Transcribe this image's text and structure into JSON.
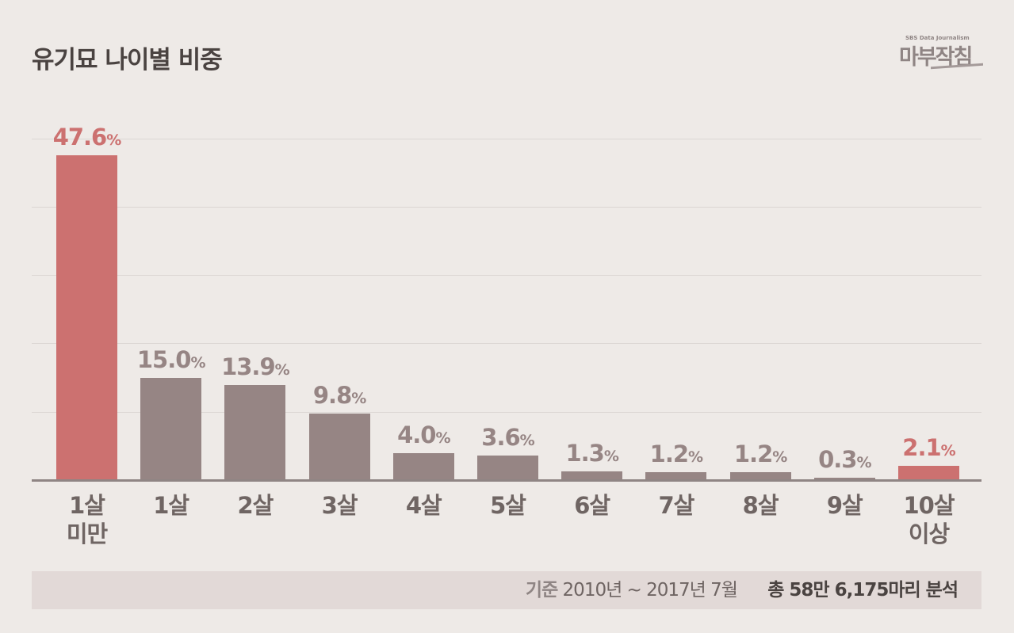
{
  "header": {
    "title": "유기묘 나이별 비중",
    "logo_sub": "SBS Data Journalism",
    "logo_main": "마부작침"
  },
  "colors": {
    "background": "#eeeae7",
    "highlight": "#cc7170",
    "bar": "#968584",
    "axis": "#8f8584",
    "grid": "#dcd6d3",
    "footer_bg": "#e2d9d7"
  },
  "chart_data": {
    "type": "bar",
    "title": "유기묘 나이별 비중",
    "xlabel": "",
    "ylabel": "",
    "ylim": [
      0,
      50
    ],
    "grid": true,
    "categories": [
      "1살 미만",
      "1살",
      "2살",
      "3살",
      "4살",
      "5살",
      "6살",
      "7살",
      "8살",
      "9살",
      "10살 이상"
    ],
    "values": [
      47.6,
      15.0,
      13.9,
      9.8,
      4.0,
      3.6,
      1.3,
      1.2,
      1.2,
      0.3,
      2.1
    ],
    "highlighted": [
      true,
      false,
      false,
      false,
      false,
      false,
      false,
      false,
      false,
      false,
      true
    ],
    "unit": "%"
  },
  "bars": [
    {
      "value": "47.6",
      "unit": "%",
      "line1": "1살",
      "line2": "미만"
    },
    {
      "value": "15.0",
      "unit": "%",
      "line1": "1살",
      "line2": ""
    },
    {
      "value": "13.9",
      "unit": "%",
      "line1": "2살",
      "line2": ""
    },
    {
      "value": "9.8",
      "unit": "%",
      "line1": "3살",
      "line2": ""
    },
    {
      "value": "4.0",
      "unit": "%",
      "line1": "4살",
      "line2": ""
    },
    {
      "value": "3.6",
      "unit": "%",
      "line1": "5살",
      "line2": ""
    },
    {
      "value": "1.3",
      "unit": "%",
      "line1": "6살",
      "line2": ""
    },
    {
      "value": "1.2",
      "unit": "%",
      "line1": "7살",
      "line2": ""
    },
    {
      "value": "1.2",
      "unit": "%",
      "line1": "8살",
      "line2": ""
    },
    {
      "value": "0.3",
      "unit": "%",
      "line1": "9살",
      "line2": ""
    },
    {
      "value": "2.1",
      "unit": "%",
      "line1": "10살",
      "line2": "이상"
    }
  ],
  "footer": {
    "basis_key": "기준",
    "basis_period": "2010년 ~ 2017년 7월",
    "total": "총 58만 6,175마리 분석"
  }
}
